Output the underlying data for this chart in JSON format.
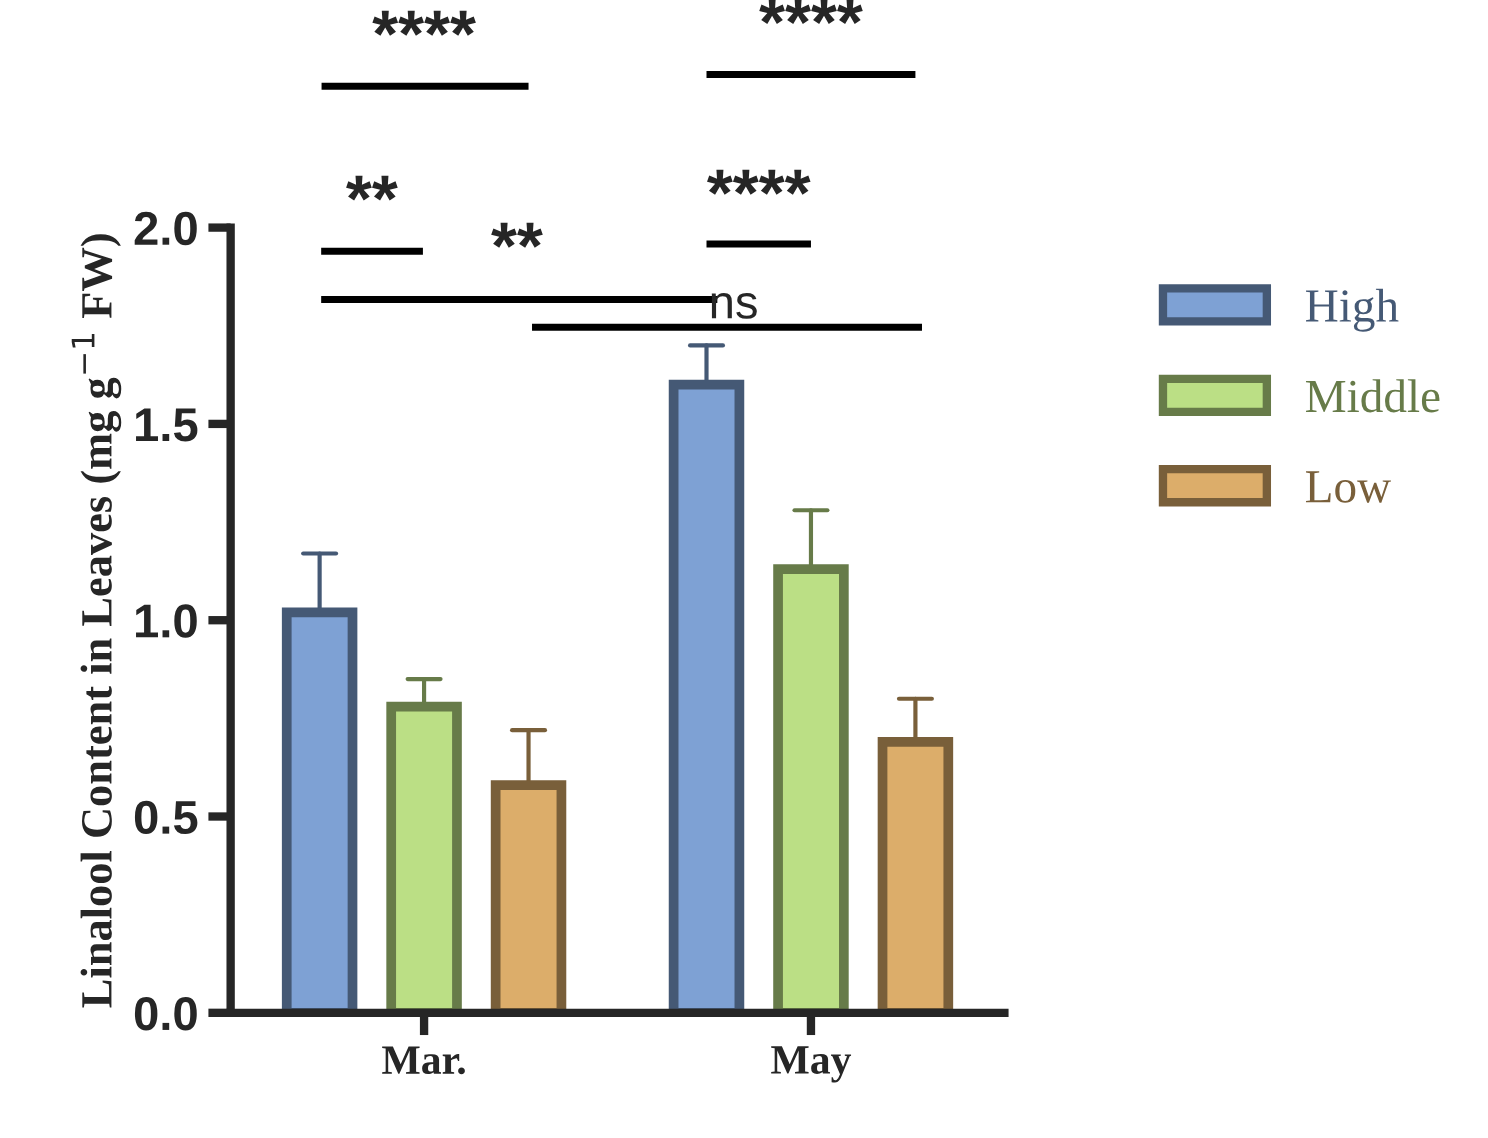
{
  "chart_data": {
    "type": "bar",
    "ylabel": "Linalool Content in Leaves (mg g$^{−1}$ FW)",
    "categories": [
      "Mar.",
      "May"
    ],
    "series": [
      {
        "name": "High",
        "color": "#7ea1d4",
        "values": [
          1.02,
          1.6
        ],
        "errors": [
          [
            1.02,
            1.17
          ],
          [
            1.6,
            1.7
          ]
        ]
      },
      {
        "name": "Middle",
        "color": "#bbdf85",
        "values": [
          0.78,
          1.13
        ],
        "errors": [
          [
            0.78,
            0.85
          ],
          [
            1.13,
            1.28
          ]
        ]
      },
      {
        "name": "Low",
        "color": "#dcad6a",
        "values": [
          0.58,
          0.69
        ],
        "errors": [
          [
            0.58,
            0.72
          ],
          [
            0.69,
            0.8
          ]
        ]
      }
    ],
    "ylim": [
      0,
      2.0
    ],
    "yticks": [
      {
        "value": 0,
        "label": "0.0"
      },
      0.5,
      {
        "value": 1,
        "label": "1.0"
      },
      1.5,
      {
        "value": 2,
        "label": "2.0"
      }
    ],
    "grid": false,
    "legend": "right",
    "annotations": [
      "****",
      "****",
      "**",
      "****",
      "**",
      "ns"
    ]
  }
}
